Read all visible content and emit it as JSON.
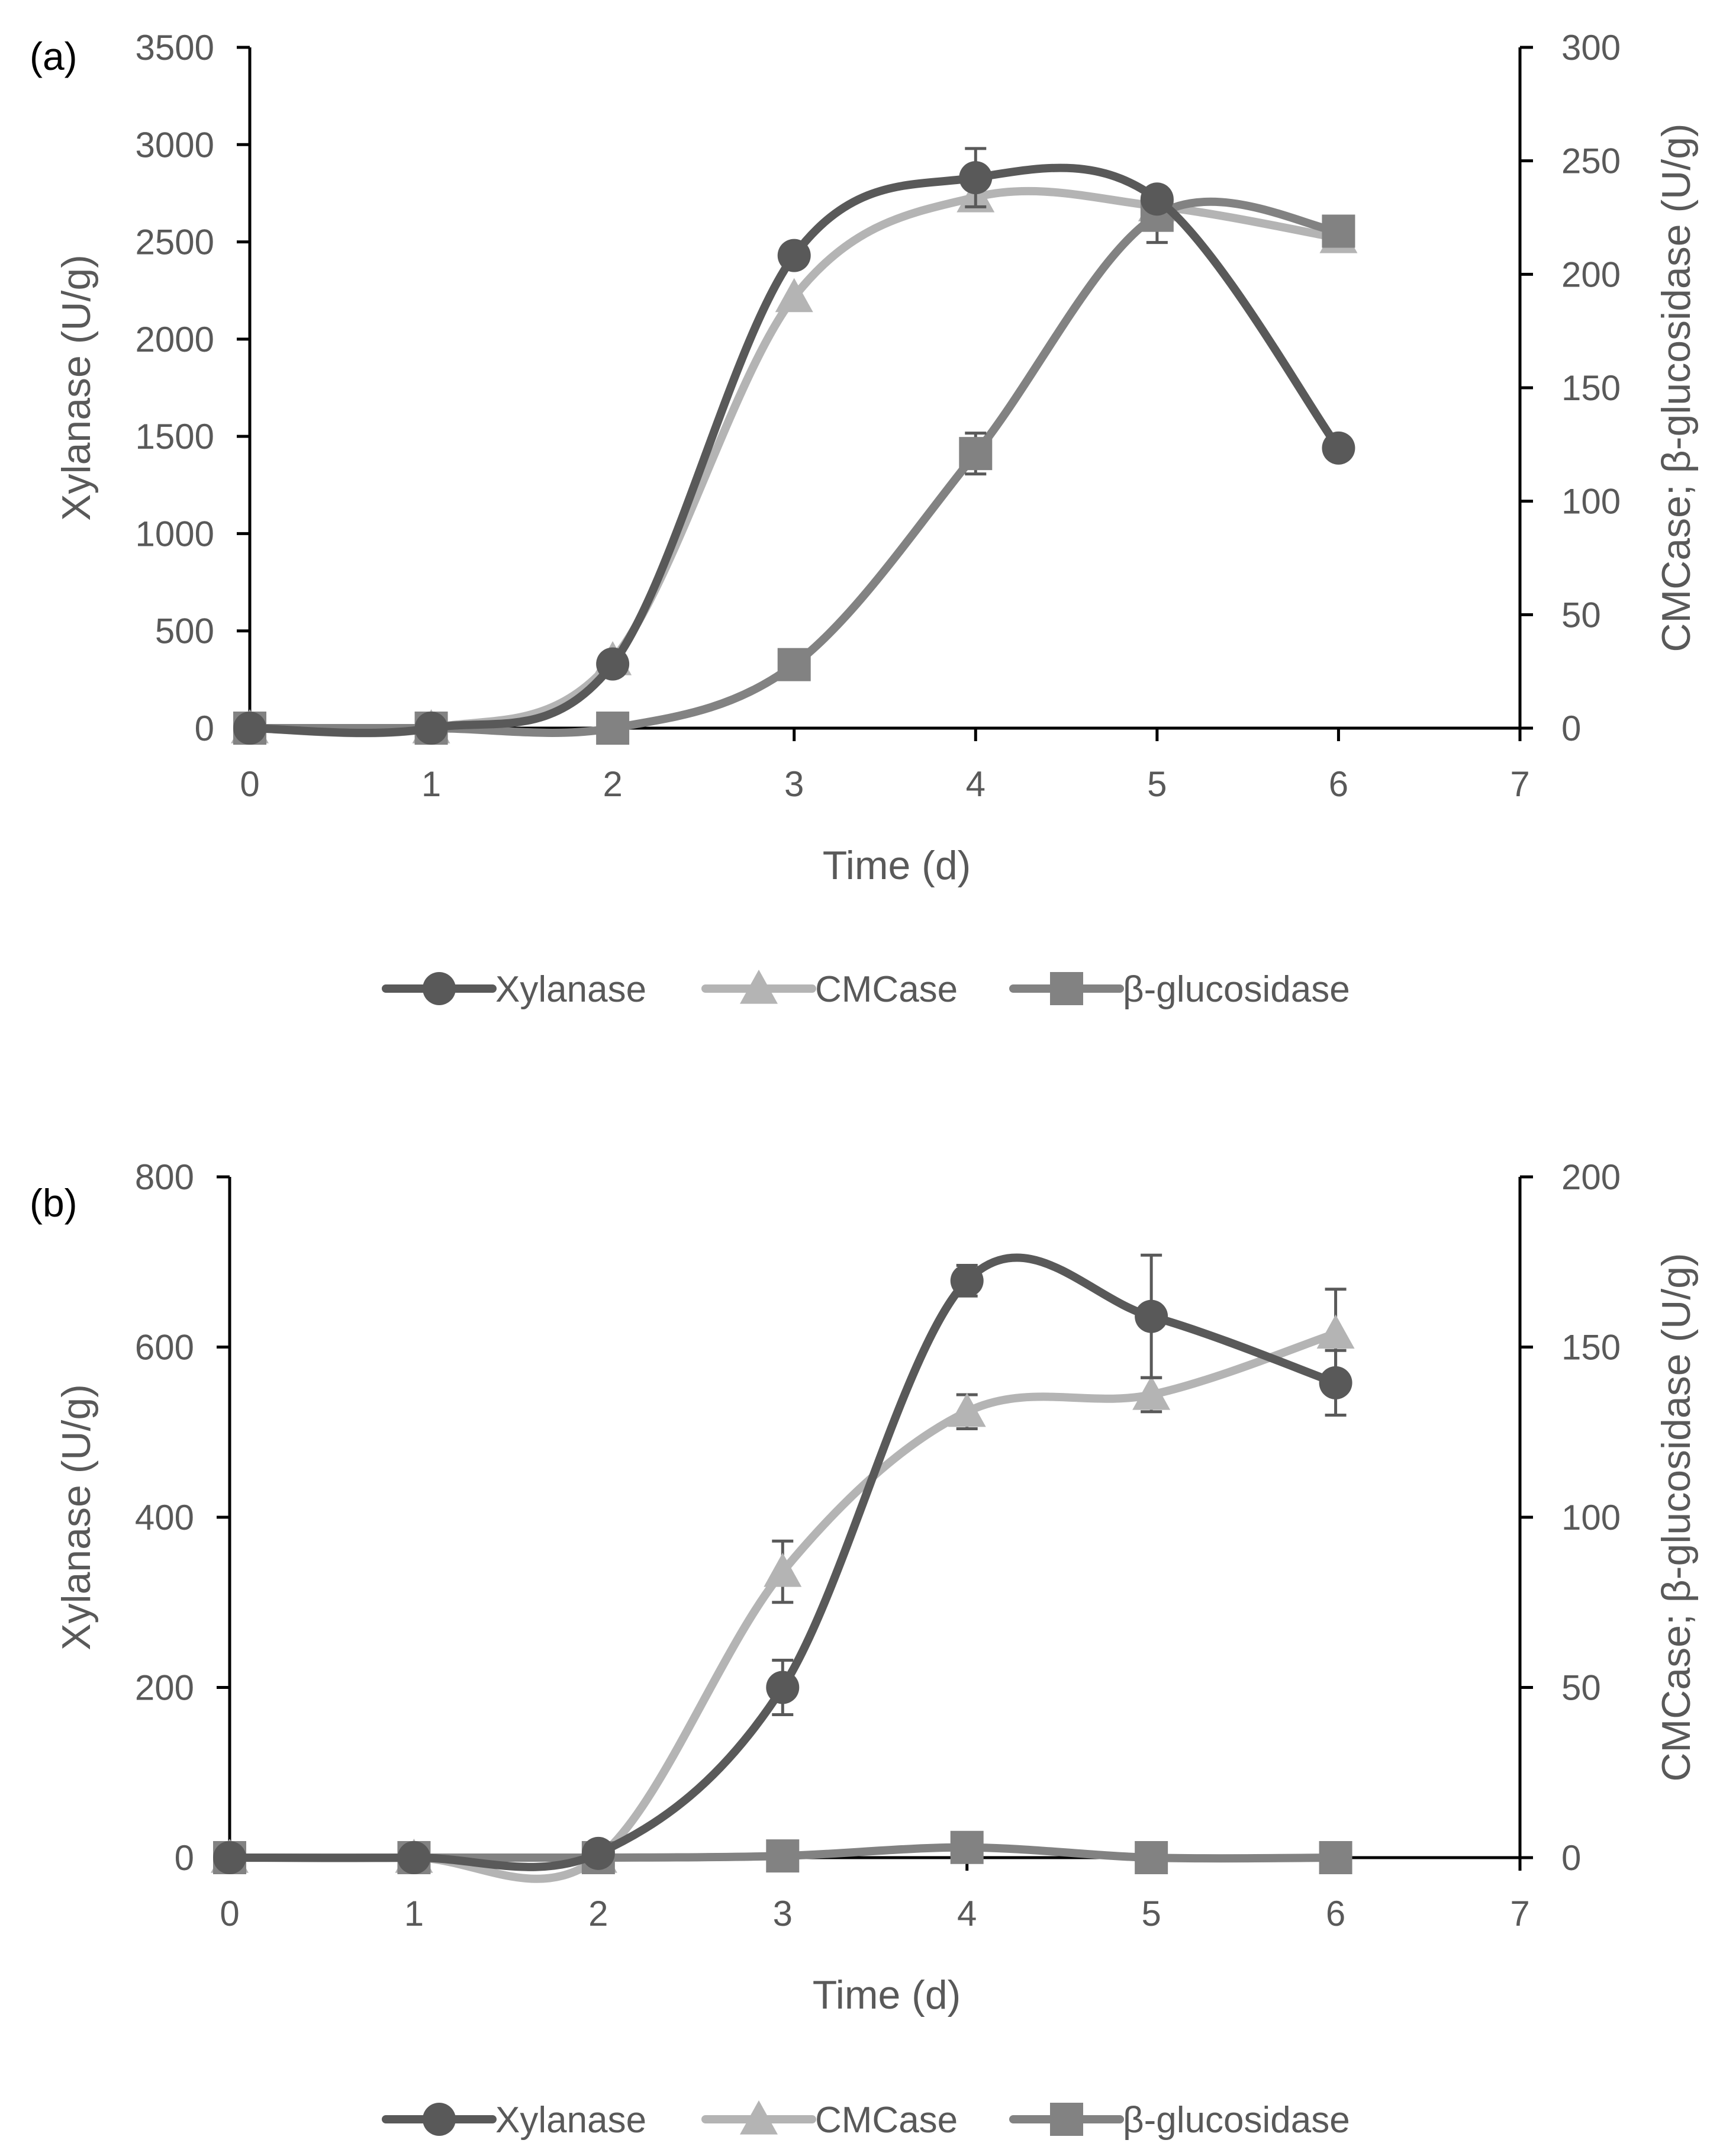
{
  "colors": {
    "xylanase": "#595959",
    "cmcase": "#b4b4b4",
    "bglucosidase": "#828282",
    "axis": "#000000",
    "text": "#595959",
    "panel_label": "#000000"
  },
  "chart_data": [
    {
      "type": "line",
      "panel_label": "(a)",
      "xlabel": "Time (d)",
      "ylabel_left": "Xylanase (U/g)",
      "ylabel_right": "CMCase; β-glucosidase (U/g)",
      "xlim": [
        0,
        7
      ],
      "ylim_left": [
        0,
        3500
      ],
      "ylim_right": [
        0,
        300
      ],
      "xticks": [
        "0",
        "1",
        "2",
        "3",
        "4",
        "5",
        "6",
        "7"
      ],
      "yticks_left": [
        "0",
        "500",
        "1000",
        "1500",
        "2000",
        "2500",
        "3000",
        "3500"
      ],
      "yticks_right": [
        "0",
        "50",
        "100",
        "150",
        "200",
        "250",
        "300"
      ],
      "grid": false,
      "legend_position": "bottom-center",
      "series": [
        {
          "name": "Xylanase",
          "axis": "left",
          "marker": "circle",
          "x": [
            0,
            1,
            2,
            3,
            4,
            5,
            6
          ],
          "values": [
            0,
            0,
            330,
            2430,
            2830,
            2720,
            1440
          ],
          "errors": [
            0,
            0,
            0,
            0,
            150,
            0,
            0
          ]
        },
        {
          "name": "CMCase",
          "axis": "right",
          "marker": "triangle",
          "x": [
            0,
            1,
            2,
            3,
            4,
            5,
            6
          ],
          "values": [
            0,
            0,
            30,
            190,
            234,
            230,
            216
          ],
          "errors": [
            0,
            0,
            0,
            0,
            0,
            0,
            0
          ]
        },
        {
          "name": "β-glucosidase",
          "axis": "right",
          "marker": "square",
          "x": [
            0,
            1,
            2,
            3,
            4,
            5,
            6
          ],
          "values": [
            0,
            0,
            0,
            28,
            121,
            226,
            219
          ],
          "errors": [
            0,
            0,
            0,
            0,
            9,
            12,
            0
          ]
        }
      ],
      "legend": [
        "Xylanase",
        "CMCase",
        "β-glucosidase"
      ]
    },
    {
      "type": "line",
      "panel_label": "(b)",
      "xlabel": "Time (d)",
      "ylabel_left": "Xylanase (U/g)",
      "ylabel_right": "CMCase; β-glucosidase (U/g)",
      "xlim": [
        0,
        7
      ],
      "ylim_left": [
        0,
        800
      ],
      "ylim_right": [
        0,
        200
      ],
      "xticks": [
        "0",
        "1",
        "2",
        "3",
        "4",
        "5",
        "6",
        "7"
      ],
      "yticks_left": [
        "0",
        "200",
        "400",
        "600",
        "800"
      ],
      "yticks_right": [
        "0",
        "50",
        "100",
        "150",
        "200"
      ],
      "grid": false,
      "legend_position": "bottom-center",
      "series": [
        {
          "name": "Xylanase",
          "axis": "left",
          "marker": "circle",
          "x": [
            0,
            1,
            2,
            3,
            4,
            5,
            6
          ],
          "values": [
            0,
            0,
            5,
            200,
            678,
            636,
            558
          ],
          "errors": [
            0,
            0,
            0,
            32,
            18,
            72,
            38
          ]
        },
        {
          "name": "CMCase",
          "axis": "right",
          "marker": "triangle",
          "x": [
            0,
            1,
            2,
            3,
            4,
            5,
            6
          ],
          "values": [
            0,
            0,
            0,
            84,
            131,
            136,
            154
          ],
          "errors": [
            0,
            0,
            0,
            9,
            5,
            5,
            13
          ]
        },
        {
          "name": "β-glucosidase",
          "axis": "right",
          "marker": "square",
          "x": [
            0,
            1,
            2,
            3,
            4,
            5,
            6
          ],
          "values": [
            0,
            0,
            0,
            0.5,
            3,
            0,
            0
          ],
          "errors": [
            0,
            0,
            0,
            0,
            0,
            0,
            0
          ]
        }
      ],
      "legend": [
        "Xylanase",
        "CMCase",
        "β-glucosidase"
      ]
    }
  ]
}
